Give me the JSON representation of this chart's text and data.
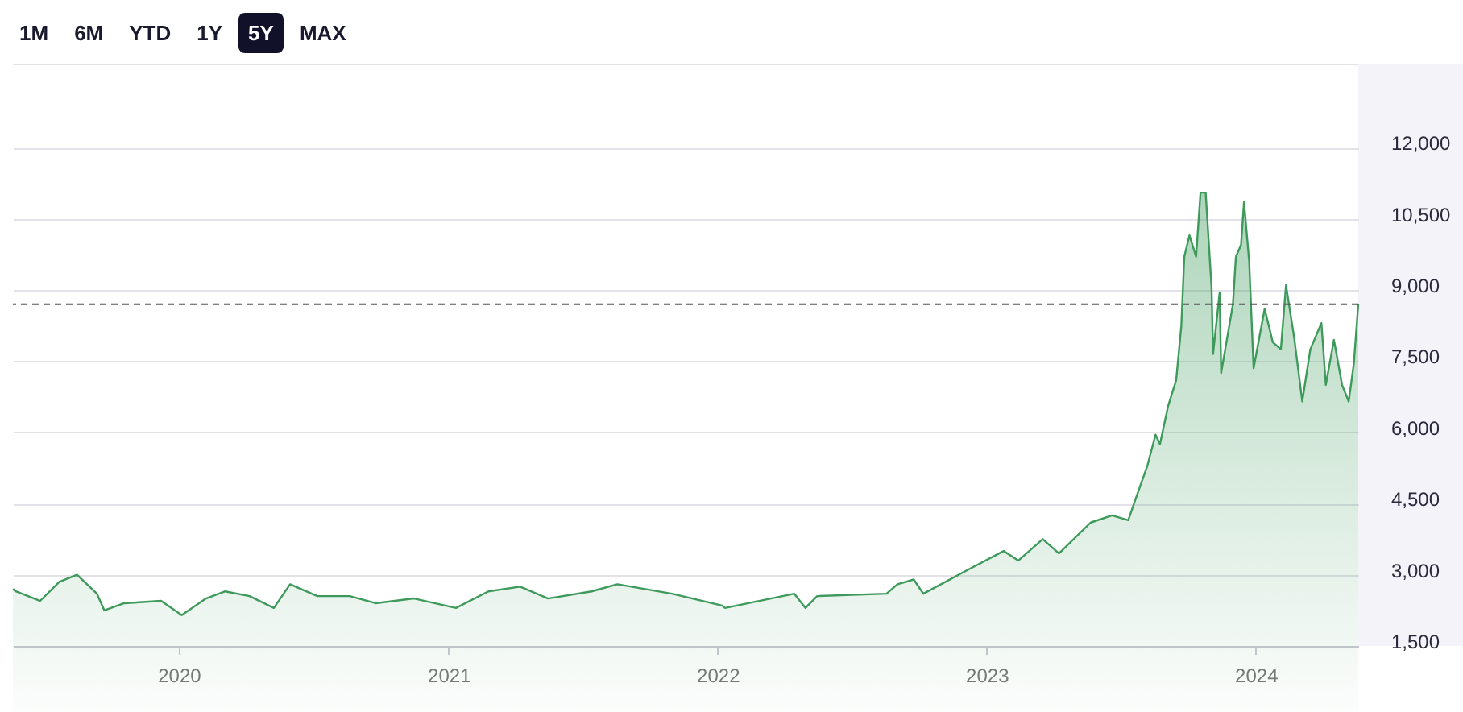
{
  "chart_data": {
    "type": "area",
    "annotations": [
      "1M",
      "6M",
      "YTD",
      "1Y",
      "5Y",
      "MAX"
    ],
    "xlim": [
      "2019-05-21",
      "2024-05-19"
    ],
    "xticks": [
      "2020",
      "2021",
      "2022",
      "2023",
      "2024"
    ],
    "ylim": [
      1500,
      13750
    ],
    "yticks": [
      {
        "value": 1500,
        "label": "1,500"
      },
      {
        "value": 3000,
        "label": "3,000"
      },
      {
        "value": 4500,
        "label": "4,500"
      },
      {
        "value": 6000,
        "label": "6,000"
      },
      {
        "value": 7500,
        "label": "7,500"
      },
      {
        "value": 9000,
        "label": "9,000"
      },
      {
        "value": 10500,
        "label": "10,500"
      },
      {
        "value": 12000,
        "label": "12,000"
      }
    ],
    "grid": "y",
    "ref_lines": [
      {
        "axis": "y",
        "value": 8700,
        "color": "#555555",
        "line_style": "dashed"
      }
    ],
    "series": [
      {
        "color": "#3d9a5b",
        "x": [
          "2019-05-21",
          "2019-05-25",
          "2019-06-27",
          "2019-07-23",
          "2019-08-16",
          "2019-09-12",
          "2019-09-22",
          "2019-10-19",
          "2019-12-08",
          "2020-01-05",
          "2020-02-07",
          "2020-03-04",
          "2020-04-06",
          "2020-05-09",
          "2020-05-31",
          "2020-07-07",
          "2020-08-20",
          "2020-09-24",
          "2020-11-15",
          "2021-01-11",
          "2021-02-24",
          "2021-04-08",
          "2021-05-16",
          "2021-07-14",
          "2021-08-18",
          "2021-10-31",
          "2022-01-07",
          "2022-01-11",
          "2022-04-15",
          "2022-04-30",
          "2022-05-16",
          "2022-08-18",
          "2022-09-02",
          "2022-09-24",
          "2022-10-07",
          "2022-12-12",
          "2023-01-24",
          "2023-02-13",
          "2023-03-18",
          "2023-04-09",
          "2023-05-22",
          "2023-06-20",
          "2023-07-12",
          "2023-07-22",
          "2023-08-07",
          "2023-08-18",
          "2023-08-24",
          "2023-09-04",
          "2023-09-15",
          "2023-09-22",
          "2023-09-26",
          "2023-10-03",
          "2023-10-12",
          "2023-10-18",
          "2023-10-25",
          "2023-11-02",
          "2023-11-04",
          "2023-11-13",
          "2023-11-15",
          "2023-12-01",
          "2023-12-05",
          "2023-12-12",
          "2023-12-16",
          "2023-12-23",
          "2023-12-29",
          "2024-01-13",
          "2024-01-24",
          "2024-02-04",
          "2024-02-11",
          "2024-02-22",
          "2024-03-04",
          "2024-03-15",
          "2024-03-30",
          "2024-04-05",
          "2024-04-16",
          "2024-04-27",
          "2024-05-06",
          "2024-05-13",
          "2024-05-19"
        ],
        "values": [
          2700,
          2650,
          2450,
          2850,
          3000,
          2600,
          2250,
          2400,
          2450,
          2150,
          2500,
          2650,
          2550,
          2300,
          2800,
          2550,
          2550,
          2400,
          2500,
          2300,
          2650,
          2750,
          2500,
          2650,
          2800,
          2600,
          2350,
          2300,
          2600,
          2300,
          2550,
          2600,
          2800,
          2900,
          2600,
          3150,
          3500,
          3300,
          3750,
          3450,
          4100,
          4250,
          4150,
          4600,
          5300,
          5950,
          5750,
          6550,
          7100,
          8250,
          9700,
          10150,
          9700,
          11050,
          11050,
          9050,
          7650,
          8950,
          7250,
          8700,
          9700,
          9950,
          10850,
          9600,
          7350,
          8600,
          7900,
          7750,
          9100,
          8000,
          6650,
          7750,
          8300,
          7000,
          7950,
          7000,
          6650,
          7450,
          8700
        ]
      }
    ]
  }
}
